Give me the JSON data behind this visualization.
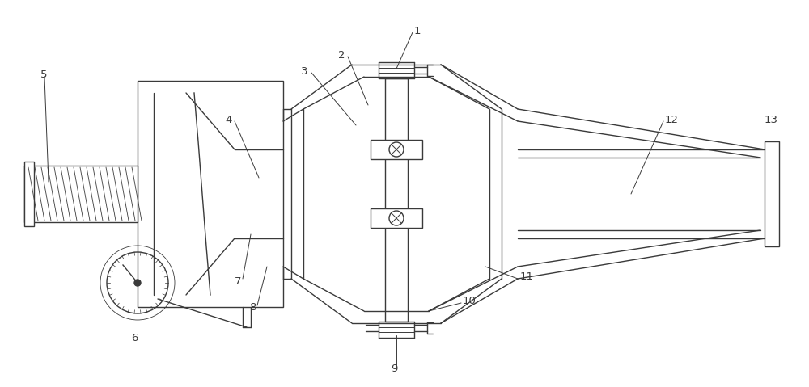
{
  "bg_color": "#ffffff",
  "line_color": "#3a3a3a",
  "lw": 1.0,
  "fig_width": 10.0,
  "fig_height": 4.79
}
